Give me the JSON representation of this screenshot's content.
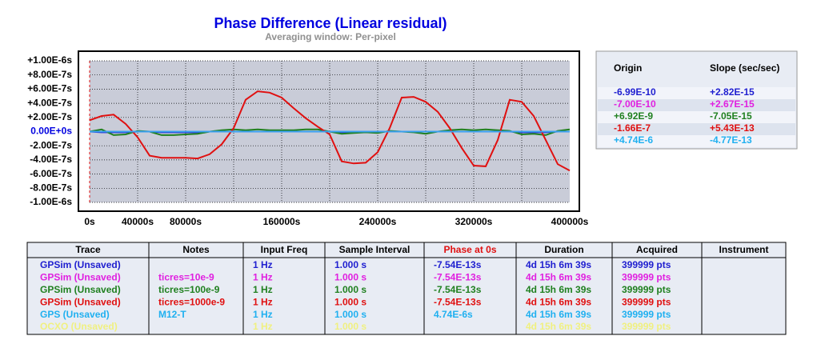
{
  "chart_data": {
    "type": "line",
    "title": "Phase Difference (Linear residual)",
    "subtitle": "Averaging window: Per-pixel",
    "x": [
      0,
      10000,
      20000,
      30000,
      40000,
      50000,
      60000,
      70000,
      80000,
      90000,
      100000,
      110000,
      120000,
      130000,
      140000,
      150000,
      160000,
      170000,
      180000,
      190000,
      200000,
      210000,
      220000,
      230000,
      240000,
      250000,
      260000,
      270000,
      280000,
      290000,
      300000,
      310000,
      320000,
      330000,
      340000,
      350000,
      360000,
      370000,
      380000,
      390000,
      400000
    ],
    "series": [
      {
        "name": "GPSim (Unsaved)",
        "color": "#2020d0",
        "values": [
          0,
          -1e-08,
          -1e-08,
          -1e-08,
          0,
          0,
          -1e-08,
          -1e-08,
          -1e-08,
          -1e-08,
          0,
          0,
          0,
          0,
          0,
          0,
          0,
          0,
          0,
          0,
          0,
          -1e-08,
          -1e-08,
          -1e-08,
          0,
          0,
          0,
          0,
          0,
          0,
          0,
          0,
          0,
          0,
          0,
          0,
          -1e-08,
          -1e-08,
          -1e-08,
          0,
          0
        ]
      },
      {
        "name": "GPSim (Unsaved)",
        "color": "#e020e0",
        "values": [
          0,
          0,
          0,
          0,
          0,
          0,
          0,
          0,
          0,
          0,
          0,
          0,
          0,
          0,
          0,
          0,
          0,
          0,
          0,
          0,
          0,
          0,
          0,
          0,
          0,
          0,
          0,
          0,
          0,
          0,
          0,
          0,
          0,
          0,
          0,
          0,
          0,
          0,
          0,
          0,
          0
        ]
      },
      {
        "name": "GPSim (Unsaved)",
        "color": "#208020",
        "values": [
          0,
          3e-08,
          -5e-08,
          -4e-08,
          1e-08,
          0,
          -5e-08,
          -5e-08,
          -4e-08,
          -3e-08,
          0,
          2e-08,
          3e-08,
          2e-08,
          3e-08,
          2e-08,
          2e-08,
          2e-08,
          3e-08,
          3e-08,
          0,
          -3e-08,
          -2e-08,
          -1e-08,
          -2e-08,
          1e-08,
          0,
          -1e-08,
          -3e-08,
          0,
          2e-08,
          3e-08,
          2e-08,
          3e-08,
          2e-08,
          1e-08,
          -4e-08,
          -3e-08,
          -5e-08,
          1e-08,
          3e-08
        ]
      },
      {
        "name": "GPSim (Unsaved)",
        "color": "#e01010",
        "values": [
          1.6e-07,
          2.2e-07,
          2.4e-07,
          1.1e-07,
          -8e-08,
          -3.4e-07,
          -3.7e-07,
          -3.7e-07,
          -3.7e-07,
          -3.8e-07,
          -3.2e-07,
          -1.8e-07,
          5e-08,
          4.5e-07,
          5.7e-07,
          5.5e-07,
          4.8e-07,
          3.3e-07,
          1.9e-07,
          7e-08,
          -4e-08,
          -4.2e-07,
          -4.5e-07,
          -4.4e-07,
          -2.9e-07,
          5e-08,
          4.8e-07,
          4.9e-07,
          4.2e-07,
          2.8e-07,
          5e-08,
          -2.3e-07,
          -4.8e-07,
          -4.9e-07,
          -1.2e-07,
          4.5e-07,
          4.2e-07,
          2.2e-07,
          -1.2e-07,
          -4.6e-07,
          -5.5e-07
        ]
      },
      {
        "name": "GPS (Unsaved)",
        "color": "#3aa0f0",
        "values": [
          0,
          0,
          0,
          0,
          0,
          0,
          0,
          0,
          0,
          0,
          0,
          0,
          0,
          0,
          0,
          0,
          0,
          0,
          0,
          0,
          0,
          0,
          0,
          0,
          0,
          0,
          0,
          0,
          0,
          0,
          0,
          0,
          0,
          0,
          0,
          0,
          0,
          0,
          0,
          0,
          0
        ]
      }
    ],
    "xlim": [
      0,
      400000
    ],
    "xticks": [
      {
        "value": 0,
        "label": "0s"
      },
      {
        "value": 40000,
        "label": "40000s"
      },
      {
        "value": 80000,
        "label": "80000s"
      },
      {
        "value": 160000,
        "label": "160000s"
      },
      {
        "value": 240000,
        "label": "240000s"
      },
      {
        "value": 320000,
        "label": "320000s"
      },
      {
        "value": 400000,
        "label": "400000s"
      }
    ],
    "xgrid": [
      40000,
      80000,
      120000,
      160000,
      200000,
      240000,
      280000,
      320000,
      360000
    ],
    "ylim": [
      -1e-06,
      1e-06
    ],
    "yticks": [
      {
        "value": 1e-06,
        "label": "+1.00E-6s"
      },
      {
        "value": 8e-07,
        "label": "+8.00E-7s"
      },
      {
        "value": 6e-07,
        "label": "+6.00E-7s"
      },
      {
        "value": 4e-07,
        "label": "+4.00E-7s"
      },
      {
        "value": 2e-07,
        "label": "+2.00E-7s"
      },
      {
        "value": 0,
        "label": "0.00E+0s"
      },
      {
        "value": -2e-07,
        "label": "-2.00E-7s"
      },
      {
        "value": -4e-07,
        "label": "-4.00E-7s"
      },
      {
        "value": -6e-07,
        "label": "-6.00E-7s"
      },
      {
        "value": -8e-07,
        "label": "-8.00E-7s"
      },
      {
        "value": -1e-06,
        "label": "-1.00E-6s"
      }
    ],
    "grid": true
  },
  "fit_table": {
    "columns": [
      "Origin",
      "Slope (sec/sec)"
    ],
    "rows": [
      [
        "-6.99E-10",
        "+2.82E-15"
      ],
      [
        "-7.00E-10",
        "+2.67E-15"
      ],
      [
        "+6.92E-9",
        "-7.05E-15"
      ],
      [
        "-1.66E-7",
        "+5.43E-13"
      ],
      [
        "+4.74E-6",
        "-4.77E-13"
      ]
    ],
    "row_colors": [
      "#2020d0",
      "#e020e0",
      "#208020",
      "#e01010",
      "#20b0f0"
    ]
  },
  "trace_table": {
    "columns": [
      "Trace",
      "Notes",
      "Input Freq",
      "Sample Interval",
      "Phase at 0s",
      "Duration",
      "Acquired",
      "Instrument"
    ],
    "rows": [
      [
        "GPSim (Unsaved)",
        null,
        "1 Hz",
        "1.000 s",
        "-7.54E-13s",
        "4d 15h 6m 39s",
        "399999 pts",
        null
      ],
      [
        "GPSim (Unsaved)",
        "ticres=10e-9",
        "1 Hz",
        "1.000 s",
        "-7.54E-13s",
        "4d 15h 6m 39s",
        "399999 pts",
        null
      ],
      [
        "GPSim (Unsaved)",
        "ticres=100e-9",
        "1 Hz",
        "1.000 s",
        "-7.54E-13s",
        "4d 15h 6m 39s",
        "399999 pts",
        null
      ],
      [
        "GPSim (Unsaved)",
        "ticres=1000e-9",
        "1 Hz",
        "1.000 s",
        "-7.54E-13s",
        "4d 15h 6m 39s",
        "399999 pts",
        null
      ],
      [
        "GPS (Unsaved)",
        "M12-T",
        "1 Hz",
        "1.000 s",
        "4.74E-6s",
        "4d 15h 6m 39s",
        "399999 pts",
        null
      ],
      [
        "OCXO (Unsaved)",
        null,
        "1 Hz",
        "1.000 s",
        null,
        "4d 15h 6m 39s",
        "399999 pts",
        null
      ]
    ],
    "row_colors": [
      "#2020d0",
      "#e020e0",
      "#208020",
      "#e01010",
      "#20b0f0",
      "#f0f080"
    ]
  }
}
